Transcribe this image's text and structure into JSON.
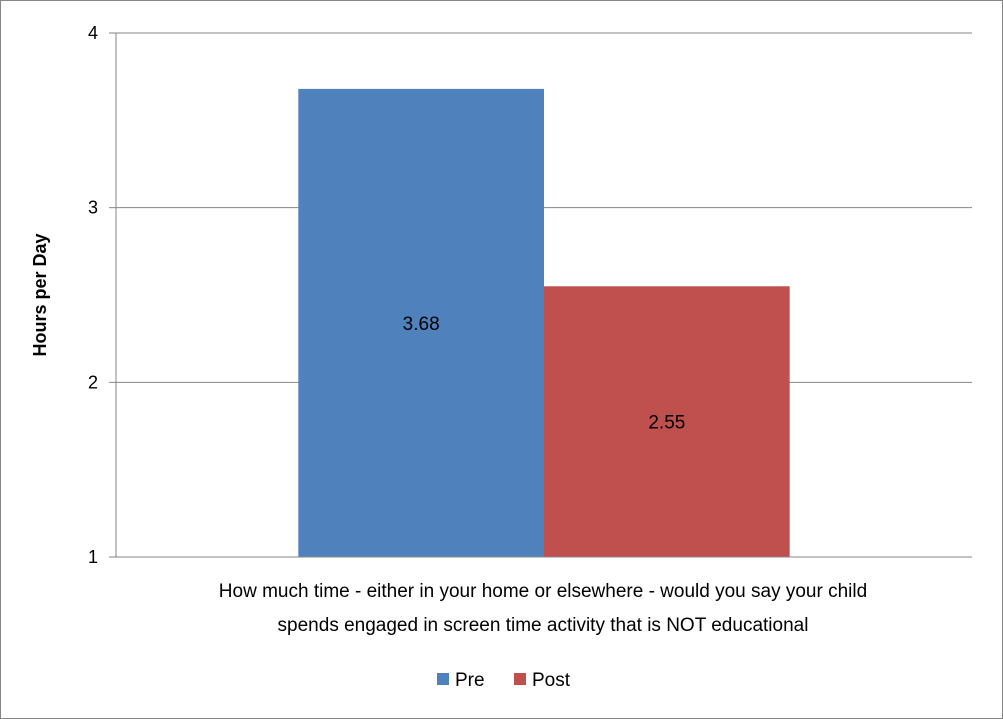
{
  "chart_data": {
    "type": "bar",
    "categories": [
      "How much time - either in your home or elsewhere - would you say your child spends engaged in screen time activity that is NOT educational"
    ],
    "category_lines": [
      "How much time - either in your home or elsewhere - would you say your child",
      "spends engaged in screen time activity that is NOT educational"
    ],
    "series": [
      {
        "name": "Pre",
        "values": [
          3.68
        ],
        "color": "#4F81BD",
        "data_labels": [
          "3.68"
        ]
      },
      {
        "name": "Post",
        "values": [
          2.55
        ],
        "color": "#C0504D",
        "data_labels": [
          "2.55"
        ]
      }
    ],
    "title": "",
    "xlabel": "",
    "ylabel": "Hours per Day",
    "ylim": [
      1,
      4
    ],
    "yticks": [
      1,
      2,
      3,
      4
    ],
    "ytick_labels": [
      "1",
      "2",
      "3",
      "4"
    ],
    "grid": true,
    "legend_position": "bottom"
  }
}
